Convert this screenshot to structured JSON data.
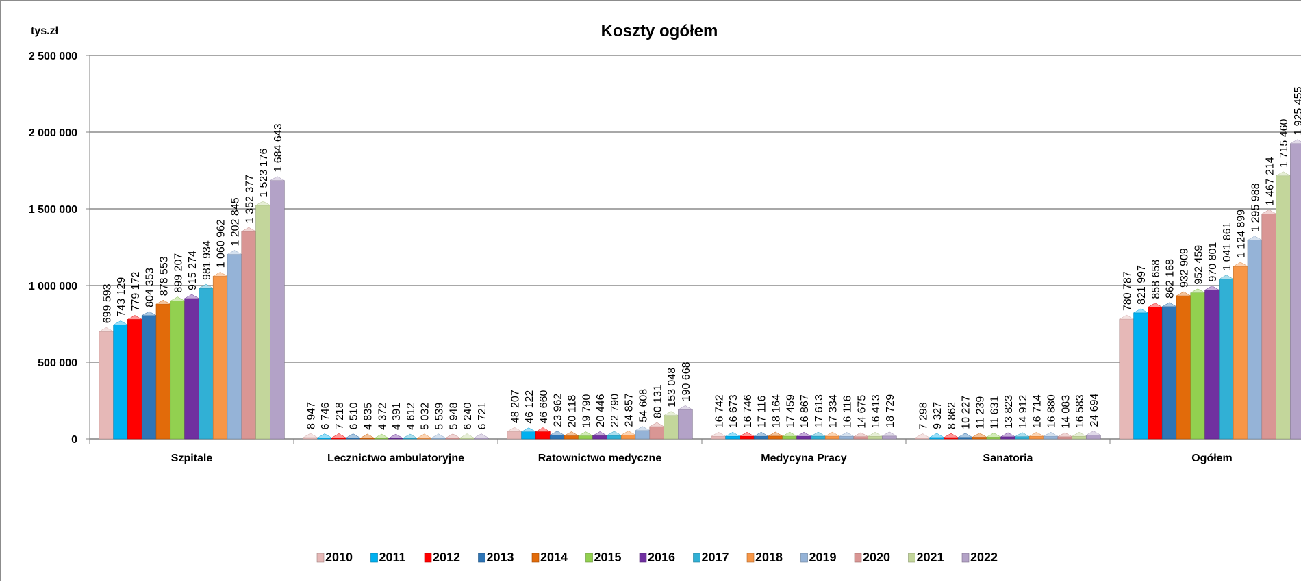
{
  "chart_data": {
    "type": "bar",
    "title": "Koszty ogółem",
    "unit_label": "tys.zł",
    "ylim": [
      0,
      2500000
    ],
    "yticks": [
      0,
      500000,
      1000000,
      1500000,
      2000000,
      2500000
    ],
    "ytick_labels": [
      "0",
      "500 000",
      "1 000 000",
      "1 500 000",
      "2 000 000",
      "2 500 000"
    ],
    "grid": true,
    "legend_position": "bottom",
    "categories": [
      "Szpitale",
      "Lecznictwo ambulatoryjne",
      "Ratownictwo medyczne",
      "Medycyna Pracy",
      "Sanatoria",
      "Ogółem"
    ],
    "series": [
      {
        "name": "2010",
        "color": "#e6b8b7",
        "values": [
          699593,
          8947,
          48207,
          16742,
          7298,
          780787
        ],
        "labels": [
          "699 593",
          "8 947",
          "48 207",
          "16 742",
          "7 298",
          "780 787"
        ]
      },
      {
        "name": "2011",
        "color": "#00b0f0",
        "values": [
          743129,
          6746,
          46122,
          16673,
          9327,
          821997
        ],
        "labels": [
          "743 129",
          "6 746",
          "46 122",
          "16 673",
          "9 327",
          "821 997"
        ]
      },
      {
        "name": "2012",
        "color": "#ff0000",
        "values": [
          779172,
          7218,
          46660,
          16746,
          8862,
          858658
        ],
        "labels": [
          "779 172",
          "7 218",
          "46 660",
          "16 746",
          "8 862",
          "858 658"
        ]
      },
      {
        "name": "2013",
        "color": "#2e75b6",
        "values": [
          804353,
          6510,
          23962,
          17116,
          10227,
          862168
        ],
        "labels": [
          "804 353",
          "6 510",
          "23 962",
          "17 116",
          "10 227",
          "862 168"
        ]
      },
      {
        "name": "2014",
        "color": "#e26b0a",
        "values": [
          878553,
          4835,
          20118,
          18164,
          11239,
          932909
        ],
        "labels": [
          "878 553",
          "4 835",
          "20 118",
          "18 164",
          "11 239",
          "932 909"
        ]
      },
      {
        "name": "2015",
        "color": "#92d050",
        "values": [
          899207,
          4372,
          19790,
          17459,
          11631,
          952459
        ],
        "labels": [
          "899 207",
          "4 372",
          "19 790",
          "17 459",
          "11 631",
          "952 459"
        ]
      },
      {
        "name": "2016",
        "color": "#7030a0",
        "values": [
          915274,
          4391,
          20446,
          16867,
          13823,
          970801
        ],
        "labels": [
          "915 274",
          "4 391",
          "20 446",
          "16 867",
          "13 823",
          "970 801"
        ]
      },
      {
        "name": "2017",
        "color": "#31b0d5",
        "values": [
          981934,
          4612,
          22790,
          17613,
          14912,
          1041861
        ],
        "labels": [
          "981 934",
          "4 612",
          "22 790",
          "17 613",
          "14 912",
          "1 041 861"
        ]
      },
      {
        "name": "2018",
        "color": "#f79646",
        "values": [
          1060962,
          5032,
          24857,
          17334,
          16714,
          1124899
        ],
        "labels": [
          "1 060 962",
          "5 032",
          "24 857",
          "17 334",
          "16 714",
          "1 124 899"
        ]
      },
      {
        "name": "2019",
        "color": "#95b3d7",
        "values": [
          1202845,
          5539,
          54608,
          16116,
          16880,
          1295988
        ],
        "labels": [
          "1 202 845",
          "5 539",
          "54 608",
          "16 116",
          "16 880",
          "1 295 988"
        ]
      },
      {
        "name": "2020",
        "color": "#d99694",
        "values": [
          1352377,
          5948,
          80131,
          14675,
          14083,
          1467214
        ],
        "labels": [
          "1 352 377",
          "5 948",
          "80 131",
          "14 675",
          "14 083",
          "1 467 214"
        ]
      },
      {
        "name": "2021",
        "color": "#c3d69b",
        "values": [
          1523176,
          6240,
          153048,
          16413,
          16583,
          1715460
        ],
        "labels": [
          "1 523 176",
          "6 240",
          "153 048",
          "16 413",
          "16 583",
          "1 715 460"
        ]
      },
      {
        "name": "2022",
        "color": "#b3a2c7",
        "values": [
          1684643,
          6721,
          190668,
          18729,
          24694,
          1925455
        ],
        "labels": [
          "1 684 643",
          "6 721",
          "190 668",
          "18 729",
          "24 694",
          "1 925 455"
        ]
      }
    ]
  }
}
